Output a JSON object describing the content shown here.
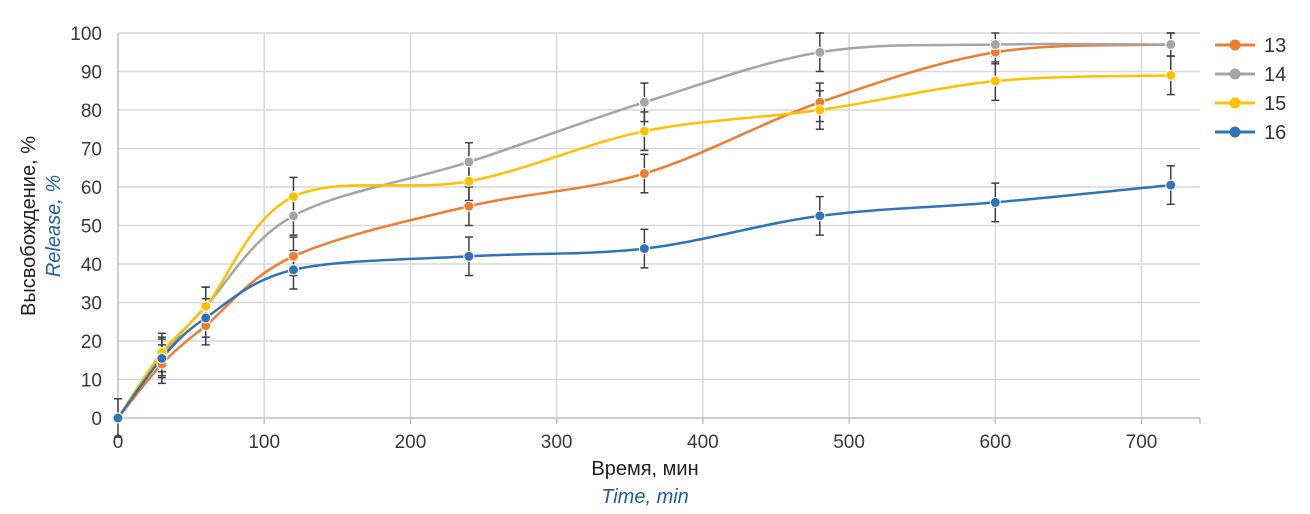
{
  "chart_data": {
    "type": "line",
    "xlabel": "Время, мин",
    "xlabel_en": "Time, min",
    "ylabel": "Высвобождение, %",
    "ylabel_en": "Release, %",
    "xlim": [
      0,
      740
    ],
    "ylim": [
      0,
      100
    ],
    "x_ticks": [
      0,
      100,
      200,
      300,
      400,
      500,
      600,
      700
    ],
    "y_ticks": [
      0,
      10,
      20,
      30,
      40,
      50,
      60,
      70,
      80,
      90,
      100
    ],
    "grid": true,
    "legend_position": "right",
    "x": [
      0,
      30,
      60,
      120,
      240,
      360,
      480,
      600,
      720
    ],
    "series": [
      {
        "name": "13",
        "color": "#ed7d31",
        "values": [
          0,
          14,
          24,
          42,
          55,
          63.5,
          82,
          95,
          97
        ],
        "errors": [
          0,
          5,
          5,
          5,
          5,
          5,
          5,
          3,
          3
        ]
      },
      {
        "name": "14",
        "color": "#a5a5a5",
        "values": [
          0,
          16,
          29,
          52.5,
          66.5,
          82,
          95,
          97,
          97
        ],
        "errors": [
          5,
          5,
          5,
          5,
          5,
          5,
          5,
          3,
          3
        ]
      },
      {
        "name": "15",
        "color": "#ffc000",
        "values": [
          0,
          17,
          29,
          57.5,
          61.5,
          74.5,
          80,
          87.5,
          89
        ],
        "errors": [
          0,
          5,
          5,
          5,
          5,
          5,
          5,
          5,
          5
        ]
      },
      {
        "name": "16",
        "color": "#2e75b6",
        "values": [
          0,
          15.5,
          26,
          38.5,
          42,
          44,
          52.5,
          56,
          60.5
        ],
        "errors": [
          0,
          5,
          5,
          5,
          5,
          5,
          5,
          5,
          5
        ]
      }
    ]
  }
}
